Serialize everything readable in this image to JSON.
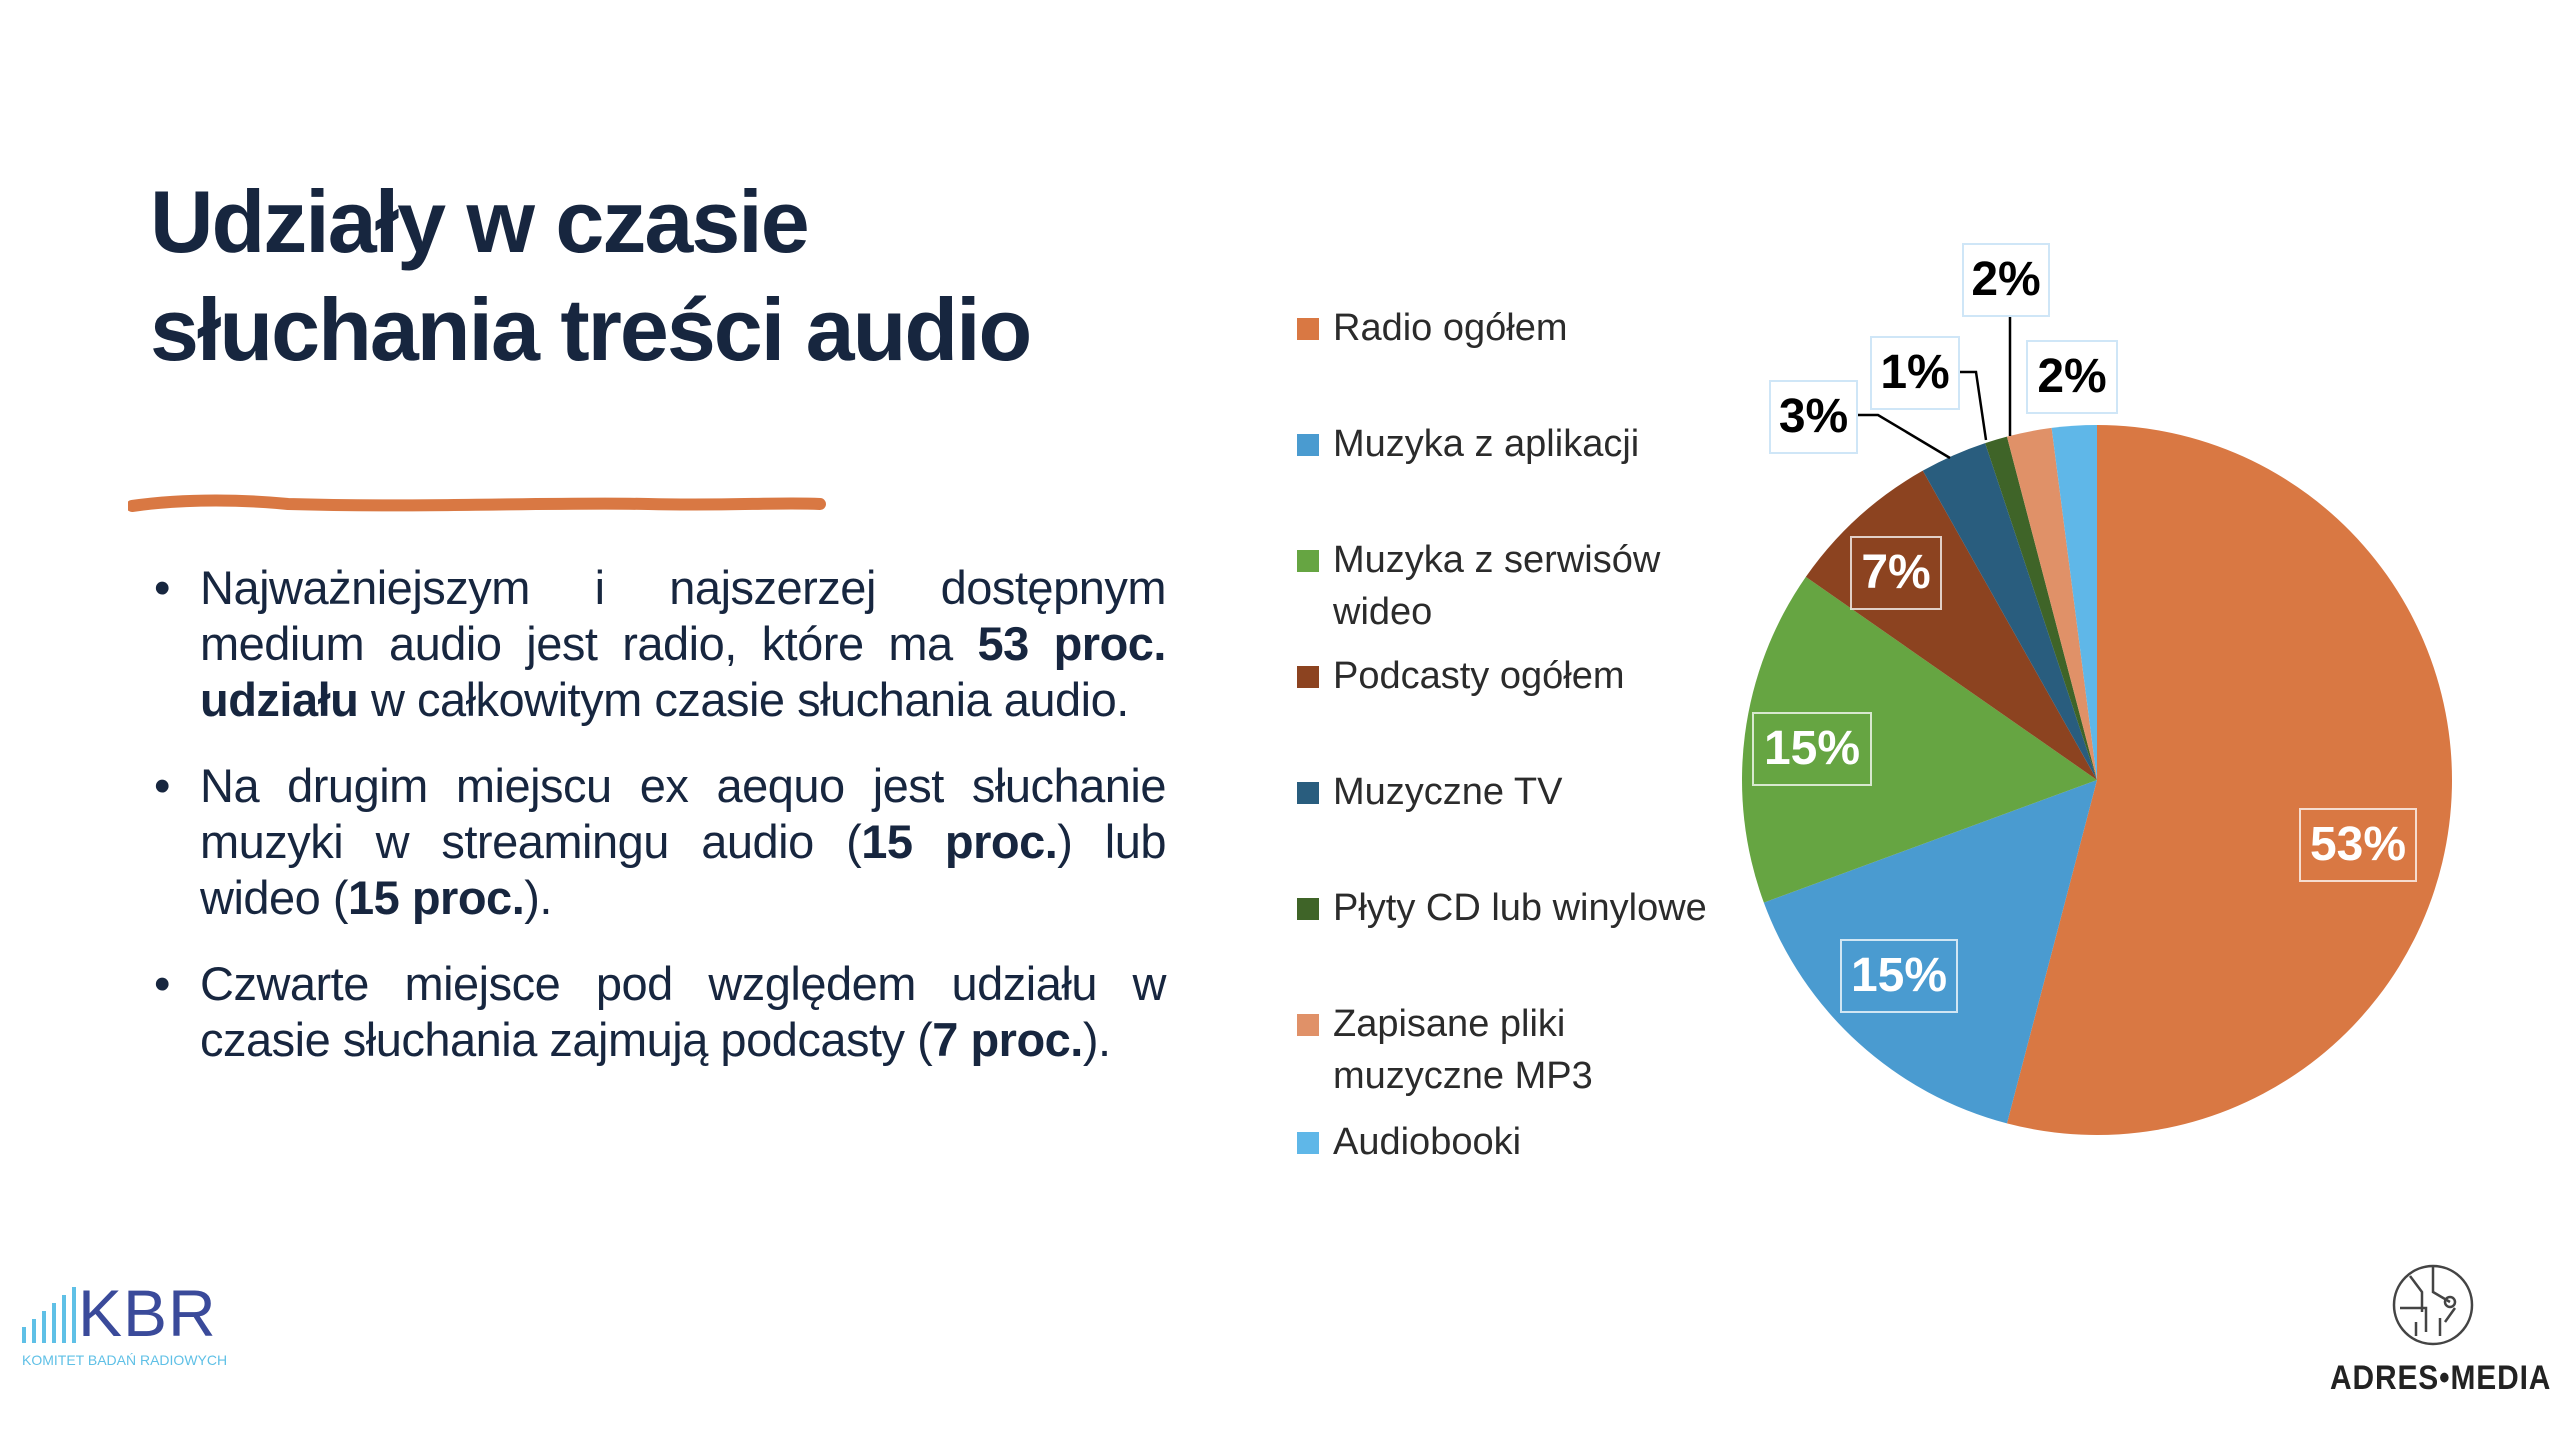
{
  "slide": {
    "title_line1": "Udziały w czasie",
    "title_line2": "słuchania treści audio",
    "bullets": [
      {
        "parts": [
          "Najważniejszym i najszerzej dostępnym medium audio jest radio, które ma ",
          "53 proc. udziału",
          " w całkowitym czasie słuchania audio."
        ]
      },
      {
        "parts": [
          "Na drugim miejscu ex aequo jest słuchanie muzyki w streamingu audio (",
          "15 proc.",
          ") lub wideo (",
          "15 proc.",
          ")."
        ]
      },
      {
        "parts": [
          "Czwarte miejsce pod względem udziału w czasie słuchania zajmują podcasty (",
          "7 proc.",
          ")."
        ]
      }
    ],
    "bullet_char": "•",
    "accent_color": "#d97843",
    "text_color": "#17263f"
  },
  "logos": {
    "kbr": "KBR",
    "kbr_subtitle": "KOMITET BADAŃ RADIOWYCH",
    "adres_media": "ADRES•MEDIA"
  },
  "chart_data": {
    "type": "pie",
    "title": "",
    "start_angle": "top, clockwise",
    "legend_position": "left",
    "categories": [
      "Radio ogółem",
      "Muzyka z aplikacji",
      "Muzyka z serwisów wideo",
      "Podcasty ogółem",
      "Muzyczne TV",
      "Płyty CD lub winylowe",
      "Zapisane pliki muzyczne MP3",
      "Audiobooki"
    ],
    "values": [
      53,
      15,
      15,
      7,
      3,
      1,
      2,
      2
    ],
    "labels": [
      "53%",
      "15%",
      "15%",
      "7%",
      "3%",
      "1%",
      "2%",
      "2%"
    ],
    "colors": [
      "#d97843",
      "#4a9bd0",
      "#66a542",
      "#8c4320",
      "#295d7e",
      "#3f6428",
      "#e09168",
      "#5fb7e8"
    ],
    "unit": "%"
  }
}
